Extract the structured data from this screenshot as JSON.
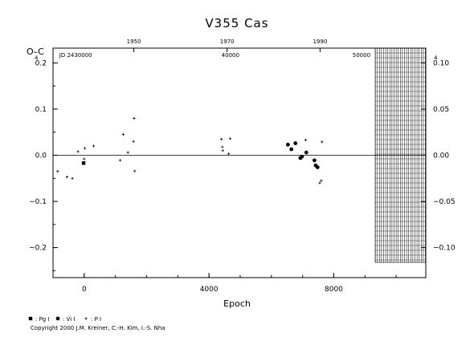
{
  "chart_data": {
    "type": "scatter",
    "title": "V355  Cas",
    "ylabel": "O–C",
    "xlabel": "Epoch",
    "xlim": [
      -1000,
      10950
    ],
    "ylim": [
      -0.265,
      0.232
    ],
    "y2lim": [
      -0.1325,
      0.116
    ],
    "x_ticks": [
      {
        "value": 0,
        "label": "0"
      },
      {
        "value": 4000,
        "label": "4000"
      },
      {
        "value": 8000,
        "label": "8000"
      }
    ],
    "y_ticks": [
      {
        "value": 0.2,
        "label": "0.2"
      },
      {
        "value": 0.1,
        "label": "0.1"
      },
      {
        "value": 0.0,
        "label": "0.0"
      },
      {
        "value": -0.1,
        "label": "−0.1"
      },
      {
        "value": -0.2,
        "label": "−0.2"
      }
    ],
    "y2_ticks": [
      {
        "value": 0.1,
        "label": "0.10"
      },
      {
        "value": 0.05,
        "label": "0.05"
      },
      {
        "value": 0.0,
        "label": "0.00"
      },
      {
        "value": -0.05,
        "label": "−0.05"
      },
      {
        "value": -0.1,
        "label": "−0.10"
      }
    ],
    "year_ticks": [
      {
        "value": 1590,
        "label": "1950"
      },
      {
        "value": 4580,
        "label": "1970"
      },
      {
        "value": 7560,
        "label": "1990"
      }
    ],
    "jd_labels": [
      {
        "value": -800,
        "label": "JD  2430000"
      },
      {
        "value": 4400,
        "label": "40000"
      },
      {
        "value": 8600,
        "label": "50000"
      }
    ],
    "exponent_mark": "4",
    "hatched_region": {
      "x_from": 9330,
      "x_to": 10950,
      "y_from": -0.232,
      "y_to": 0.232
    },
    "series": [
      {
        "name": ": Pg I",
        "marker": "square",
        "points": [
          [
            -20,
            -0.017
          ]
        ]
      },
      {
        "name": ": Vi I",
        "marker": "circle",
        "points": [
          [
            6530,
            0.023
          ],
          [
            6640,
            0.013
          ],
          [
            6770,
            0.026
          ],
          [
            6930,
            -0.006
          ],
          [
            6980,
            -0.003
          ],
          [
            7120,
            0.006
          ],
          [
            7380,
            -0.011
          ],
          [
            7420,
            -0.022
          ],
          [
            7480,
            -0.026
          ]
        ]
      },
      {
        "name": ": P I",
        "marker": "plus",
        "points": [
          [
            -850,
            -0.035
          ],
          [
            -550,
            -0.047
          ],
          [
            -380,
            -0.05
          ],
          [
            -200,
            0.008
          ],
          [
            0,
            -0.008
          ],
          [
            20,
            0.015
          ],
          [
            300,
            0.02
          ],
          [
            1150,
            -0.011
          ],
          [
            1250,
            0.045
          ],
          [
            1400,
            0.006
          ],
          [
            1580,
            0.03
          ],
          [
            1620,
            -0.034
          ],
          [
            1600,
            0.08
          ],
          [
            4400,
            0.035
          ],
          [
            4430,
            0.018
          ],
          [
            4440,
            0.01
          ],
          [
            4630,
            0.003
          ],
          [
            4680,
            0.036
          ],
          [
            7100,
            0.033
          ],
          [
            7550,
            -0.06
          ],
          [
            7600,
            -0.055
          ],
          [
            7620,
            0.029
          ]
        ]
      }
    ]
  },
  "copyright": "Copyright 2000 J.M. Kreiner, C.-H. Kim, I.-S. Nha",
  "colors": {
    "ink": "#000000",
    "background": "#ffffff"
  }
}
